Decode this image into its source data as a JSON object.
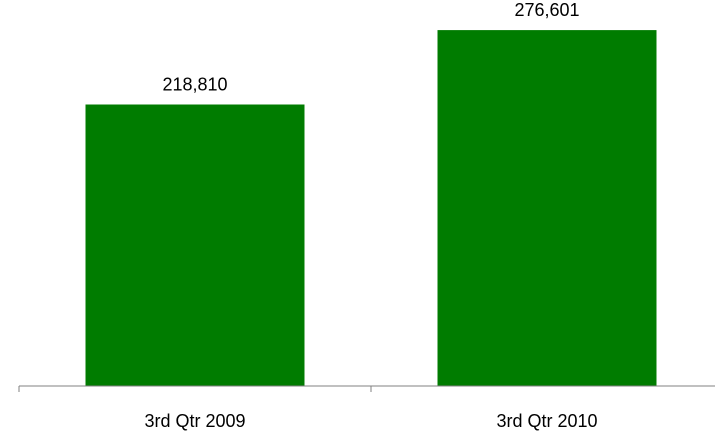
{
  "chart_data": {
    "type": "bar",
    "categories": [
      "3rd Qtr 2009",
      "3rd Qtr 2010"
    ],
    "values": [
      218810,
      276601
    ],
    "value_labels": [
      "218,810",
      "276,601"
    ],
    "title": "",
    "xlabel": "",
    "ylabel": "",
    "ylim": [
      0,
      300000
    ],
    "grid": false,
    "legend": "none",
    "bar_color": "#007c00",
    "axis_color": "#808080"
  }
}
